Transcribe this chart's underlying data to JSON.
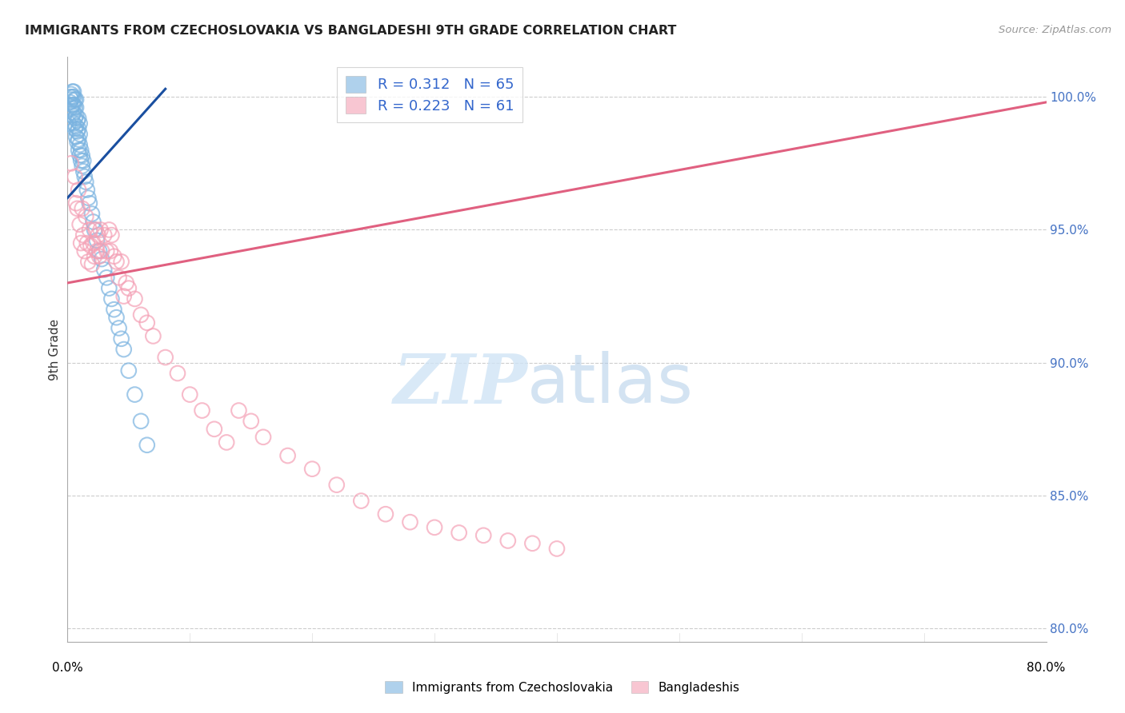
{
  "title": "IMMIGRANTS FROM CZECHOSLOVAKIA VS BANGLADESHI 9TH GRADE CORRELATION CHART",
  "source": "Source: ZipAtlas.com",
  "ylabel": "9th Grade",
  "right_yticks": [
    "100.0%",
    "95.0%",
    "90.0%",
    "85.0%",
    "80.0%"
  ],
  "right_ytick_vals": [
    1.0,
    0.95,
    0.9,
    0.85,
    0.8
  ],
  "legend1_label": "R = 0.312   N = 65",
  "legend2_label": "R = 0.223   N = 61",
  "blue_color": "#7ab3e0",
  "pink_color": "#f4a0b5",
  "blue_line_color": "#1a4fa0",
  "pink_line_color": "#e06080",
  "xlim": [
    0.0,
    0.8
  ],
  "ylim": [
    0.795,
    1.015
  ],
  "grid_yticks": [
    0.8,
    0.85,
    0.9,
    0.95,
    1.0
  ],
  "blue_scatter_x": [
    0.001,
    0.002,
    0.002,
    0.003,
    0.003,
    0.003,
    0.004,
    0.004,
    0.004,
    0.004,
    0.005,
    0.005,
    0.005,
    0.005,
    0.005,
    0.006,
    0.006,
    0.006,
    0.006,
    0.007,
    0.007,
    0.007,
    0.007,
    0.007,
    0.008,
    0.008,
    0.008,
    0.009,
    0.009,
    0.009,
    0.009,
    0.01,
    0.01,
    0.01,
    0.01,
    0.011,
    0.011,
    0.012,
    0.012,
    0.013,
    0.013,
    0.014,
    0.015,
    0.016,
    0.017,
    0.018,
    0.02,
    0.021,
    0.022,
    0.024,
    0.026,
    0.028,
    0.03,
    0.032,
    0.034,
    0.036,
    0.038,
    0.04,
    0.042,
    0.044,
    0.046,
    0.05,
    0.055,
    0.06,
    0.065
  ],
  "blue_scatter_y": [
    0.99,
    0.998,
    1.0,
    0.996,
    0.999,
    1.001,
    0.993,
    0.997,
    1.0,
    1.002,
    0.99,
    0.994,
    0.997,
    1.0,
    1.002,
    0.988,
    0.992,
    0.996,
    0.999,
    0.985,
    0.989,
    0.993,
    0.996,
    0.999,
    0.983,
    0.987,
    0.991,
    0.98,
    0.984,
    0.988,
    0.992,
    0.978,
    0.982,
    0.986,
    0.99,
    0.976,
    0.98,
    0.974,
    0.978,
    0.972,
    0.976,
    0.97,
    0.968,
    0.965,
    0.962,
    0.96,
    0.956,
    0.953,
    0.95,
    0.946,
    0.942,
    0.939,
    0.935,
    0.932,
    0.928,
    0.924,
    0.92,
    0.917,
    0.913,
    0.909,
    0.905,
    0.897,
    0.888,
    0.878,
    0.869
  ],
  "pink_scatter_x": [
    0.003,
    0.006,
    0.007,
    0.008,
    0.009,
    0.01,
    0.011,
    0.012,
    0.013,
    0.014,
    0.015,
    0.016,
    0.017,
    0.018,
    0.019,
    0.02,
    0.021,
    0.022,
    0.023,
    0.024,
    0.025,
    0.026,
    0.027,
    0.028,
    0.03,
    0.032,
    0.034,
    0.035,
    0.036,
    0.038,
    0.04,
    0.042,
    0.044,
    0.046,
    0.048,
    0.05,
    0.055,
    0.06,
    0.065,
    0.07,
    0.08,
    0.09,
    0.1,
    0.11,
    0.12,
    0.13,
    0.14,
    0.15,
    0.16,
    0.18,
    0.2,
    0.22,
    0.24,
    0.26,
    0.28,
    0.3,
    0.32,
    0.34,
    0.36,
    0.38,
    0.4
  ],
  "pink_scatter_y": [
    0.975,
    0.97,
    0.96,
    0.958,
    0.965,
    0.952,
    0.945,
    0.958,
    0.948,
    0.942,
    0.955,
    0.945,
    0.938,
    0.95,
    0.944,
    0.937,
    0.945,
    0.94,
    0.95,
    0.942,
    0.948,
    0.94,
    0.95,
    0.942,
    0.948,
    0.942,
    0.95,
    0.942,
    0.948,
    0.94,
    0.938,
    0.932,
    0.938,
    0.925,
    0.93,
    0.928,
    0.924,
    0.918,
    0.915,
    0.91,
    0.902,
    0.896,
    0.888,
    0.882,
    0.875,
    0.87,
    0.882,
    0.878,
    0.872,
    0.865,
    0.86,
    0.854,
    0.848,
    0.843,
    0.84,
    0.838,
    0.836,
    0.835,
    0.833,
    0.832,
    0.83
  ],
  "blue_trend_x": [
    0.0,
    0.08
  ],
  "blue_trend_y": [
    0.962,
    1.003
  ],
  "pink_trend_x": [
    0.0,
    0.8
  ],
  "pink_trend_y": [
    0.93,
    0.998
  ]
}
